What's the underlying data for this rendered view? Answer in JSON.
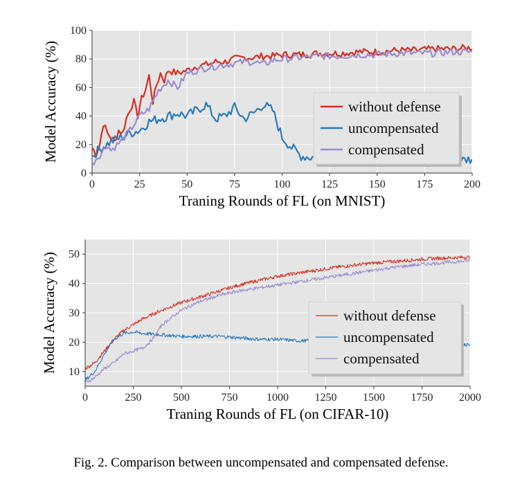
{
  "caption": "Fig. 2.  Comparison between uncompensated and compensated defense.",
  "colors": {
    "without_defense": "#d62d20",
    "uncompensated": "#2a7ab8",
    "compensated": "#9b8ccf",
    "plot_bg": "#e5e5e5",
    "grid": "#ffffff"
  },
  "chart_data": [
    {
      "type": "line",
      "xlabel": "Traning Rounds of FL (on MNIST)",
      "ylabel": "Model Accuracy (%)",
      "xlim": [
        0,
        200
      ],
      "ylim": [
        0,
        100
      ],
      "xticks": [
        "0",
        "25",
        "50",
        "75",
        "100",
        "125",
        "150",
        "175",
        "200"
      ],
      "yticks": [
        "0",
        "20",
        "40",
        "60",
        "80",
        "100"
      ],
      "grid": true,
      "legend_position": "center-right",
      "series": [
        {
          "name": "without defense",
          "x": [
            0,
            2,
            4,
            6,
            8,
            10,
            12,
            14,
            16,
            18,
            20,
            22,
            24,
            26,
            28,
            30,
            32,
            34,
            36,
            38,
            40,
            45,
            50,
            55,
            60,
            65,
            70,
            75,
            80,
            85,
            90,
            95,
            100,
            110,
            120,
            130,
            140,
            150,
            160,
            170,
            180,
            190,
            200
          ],
          "y": [
            18,
            13,
            20,
            35,
            28,
            25,
            22,
            30,
            28,
            38,
            45,
            50,
            40,
            52,
            58,
            68,
            50,
            62,
            70,
            65,
            72,
            70,
            72,
            75,
            76,
            78,
            78,
            80,
            81,
            81,
            82,
            82,
            83,
            83,
            84,
            84,
            85,
            85,
            86,
            86,
            87,
            87,
            88
          ]
        },
        {
          "name": "uncompensated",
          "x": [
            0,
            5,
            10,
            15,
            20,
            25,
            30,
            35,
            40,
            45,
            50,
            55,
            60,
            65,
            70,
            75,
            80,
            85,
            90,
            95,
            100,
            105,
            110,
            115,
            120,
            125,
            130,
            140,
            150,
            160,
            170,
            180,
            190,
            195,
            200
          ],
          "y": [
            12,
            18,
            22,
            25,
            28,
            30,
            36,
            38,
            40,
            42,
            40,
            44,
            48,
            38,
            40,
            46,
            38,
            42,
            48,
            44,
            25,
            18,
            12,
            11,
            12,
            11,
            11,
            11,
            11,
            11,
            11,
            11,
            11,
            9,
            10
          ]
        },
        {
          "name": "compensated",
          "x": [
            0,
            2,
            5,
            8,
            10,
            15,
            20,
            25,
            30,
            35,
            40,
            45,
            50,
            55,
            60,
            65,
            70,
            75,
            80,
            85,
            90,
            95,
            100,
            110,
            120,
            130,
            140,
            150,
            160,
            170,
            180,
            190,
            200
          ],
          "y": [
            6,
            10,
            14,
            20,
            16,
            22,
            30,
            40,
            45,
            58,
            65,
            60,
            70,
            72,
            74,
            75,
            76,
            77,
            78,
            78,
            76,
            79,
            80,
            81,
            82,
            82,
            83,
            83,
            84,
            84,
            84,
            85,
            85
          ]
        }
      ]
    },
    {
      "type": "line",
      "xlabel": "Traning Rounds of FL (on CIFAR-10)",
      "ylabel": "Model Accuracy (%)",
      "xlim": [
        0,
        2000
      ],
      "ylim": [
        5,
        55
      ],
      "xticks": [
        "0",
        "250",
        "500",
        "750",
        "1000",
        "1250",
        "1500",
        "1750",
        "2000"
      ],
      "yticks": [
        "10",
        "20",
        "30",
        "40",
        "50"
      ],
      "grid": true,
      "legend_position": "lower-right",
      "series": [
        {
          "name": "without defense",
          "x": [
            0,
            50,
            100,
            150,
            200,
            250,
            300,
            400,
            500,
            600,
            700,
            800,
            900,
            1000,
            1100,
            1200,
            1300,
            1400,
            1500,
            1600,
            1700,
            1800,
            1900,
            2000
          ],
          "y": [
            11,
            13,
            17,
            21,
            24,
            26,
            28,
            31,
            33.5,
            35.5,
            37.5,
            39.5,
            41,
            42.5,
            43.5,
            44.5,
            45.5,
            46.3,
            47,
            47.5,
            48,
            48.5,
            48.8,
            49
          ]
        },
        {
          "name": "uncompensated",
          "x": [
            0,
            50,
            100,
            150,
            200,
            250,
            300,
            400,
            500,
            600,
            700,
            800,
            900,
            1000,
            1100,
            1200,
            1300,
            1400,
            1500,
            1600,
            1700,
            1800,
            1900,
            2000
          ],
          "y": [
            7,
            10,
            16,
            21,
            23,
            23.5,
            23,
            22.5,
            22,
            22,
            22,
            21.5,
            21,
            21,
            20.5,
            20.5,
            20.5,
            20.5,
            20,
            20,
            20,
            20,
            20,
            19
          ]
        },
        {
          "name": "compensated",
          "x": [
            0,
            50,
            100,
            150,
            200,
            250,
            300,
            350,
            400,
            500,
            600,
            700,
            800,
            900,
            1000,
            1100,
            1200,
            1300,
            1400,
            1500,
            1600,
            1700,
            1800,
            1900,
            2000
          ],
          "y": [
            6,
            8,
            11,
            13,
            16,
            17,
            18,
            21,
            26,
            31,
            34,
            36,
            37.5,
            38.5,
            39.5,
            40.5,
            41.5,
            42.5,
            43.5,
            44.5,
            45.5,
            46.2,
            46.8,
            47.3,
            47.8
          ]
        }
      ]
    }
  ]
}
